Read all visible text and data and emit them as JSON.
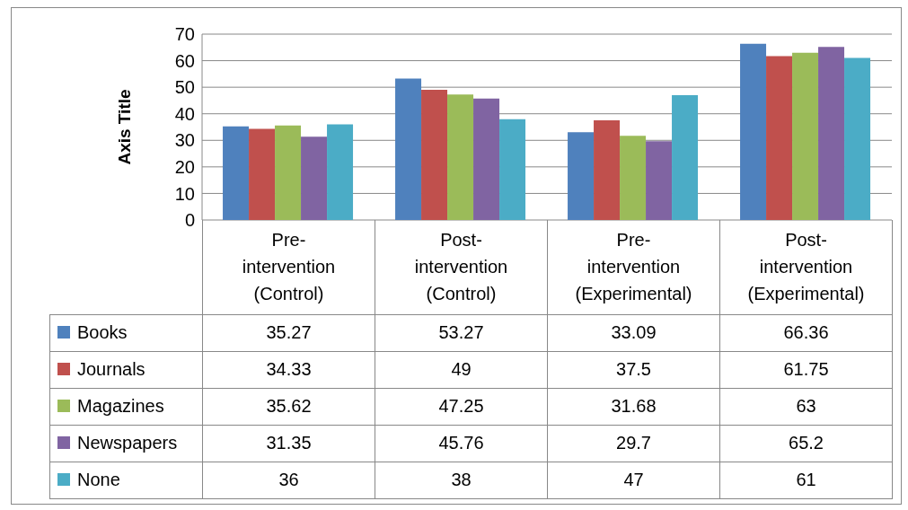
{
  "chart_data": {
    "type": "bar",
    "ylabel": "Axis Title",
    "categories": [
      "Pre-intervention (Control)",
      "Post-intervention (Control)",
      "Pre-intervention (Experimental)",
      "Post-intervention (Experimental)"
    ],
    "series": [
      {
        "name": "Books",
        "color": "#4f81bd",
        "values": [
          35.27,
          53.27,
          33.09,
          66.36
        ]
      },
      {
        "name": "Journals",
        "color": "#c0504d",
        "values": [
          34.33,
          49,
          37.5,
          61.75
        ]
      },
      {
        "name": "Magazines",
        "color": "#9bbb59",
        "values": [
          35.62,
          47.25,
          31.68,
          63
        ]
      },
      {
        "name": "Newspapers",
        "color": "#8064a2",
        "values": [
          31.35,
          45.76,
          29.7,
          65.2
        ]
      },
      {
        "name": "None",
        "color": "#4bacc6",
        "values": [
          36,
          38,
          47,
          61
        ]
      }
    ],
    "ylim": [
      0,
      70
    ],
    "yticks": [
      0,
      10,
      20,
      30,
      40,
      50,
      60,
      70
    ],
    "grid": "y",
    "legend": "bottom",
    "data_labels": true
  }
}
